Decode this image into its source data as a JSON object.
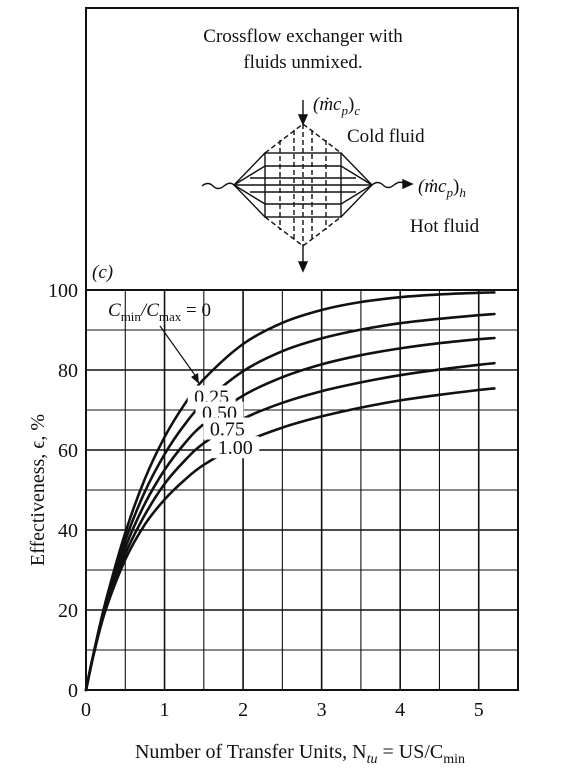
{
  "chart_data": {
    "type": "line",
    "panel_label": "(c)",
    "title_line1": "Crossflow exchanger with",
    "title_line2": "fluids unmixed.",
    "diagram": {
      "cold_stream": {
        "symbol": "(ṁc",
        "sub": "p",
        "close": ")",
        "sub2": "c",
        "label": "Cold fluid"
      },
      "hot_stream": {
        "symbol": "(ṁc",
        "sub": "p",
        "close": ")",
        "sub2": "h",
        "label": "Hot fluid"
      }
    },
    "xlabel": "Number of Transfer Units, N",
    "xlabel_sub": "tu",
    "xlabel_rest": " = US/C",
    "xlabel_sub2": "min",
    "ylabel": "Effectiveness, ϵ, %",
    "xlim": [
      0,
      5.5
    ],
    "ylim": [
      0,
      100
    ],
    "x_ticks": [
      0,
      1,
      2,
      3,
      4,
      5
    ],
    "y_ticks": [
      0,
      20,
      40,
      60,
      80,
      100
    ],
    "grid": true,
    "series_label_prefix": {
      "c": "C",
      "sub1": "min",
      "slash": "/C",
      "sub2": "max",
      "eq": " = 0"
    },
    "series": [
      {
        "name": "0",
        "x": [
          0,
          0.1,
          0.25,
          0.5,
          0.75,
          1.0,
          1.25,
          1.5,
          2.0,
          2.5,
          3.0,
          3.5,
          4.0,
          4.5,
          5.0,
          5.2
        ],
        "values": [
          0,
          9.5,
          22.1,
          39.3,
          52.8,
          63.2,
          71.3,
          77.7,
          86.5,
          91.8,
          95.0,
          97.0,
          98.2,
          98.9,
          99.3,
          99.4
        ]
      },
      {
        "name": "0.25",
        "x": [
          0,
          0.1,
          0.25,
          0.5,
          0.75,
          1.0,
          1.25,
          1.5,
          2.0,
          2.5,
          3.0,
          3.5,
          4.0,
          4.5,
          5.0,
          5.2
        ],
        "values": [
          0,
          9.4,
          21.6,
          37.4,
          49.6,
          58.9,
          66.2,
          71.8,
          79.7,
          84.7,
          87.9,
          90.1,
          91.7,
          92.8,
          93.7,
          94.0
        ]
      },
      {
        "name": "0.50",
        "x": [
          0,
          0.1,
          0.25,
          0.5,
          0.75,
          1.0,
          1.25,
          1.5,
          2.0,
          2.5,
          3.0,
          3.5,
          4.0,
          4.5,
          5.0,
          5.2
        ],
        "values": [
          0,
          9.3,
          21.0,
          35.6,
          46.6,
          55.0,
          61.5,
          66.5,
          73.6,
          78.2,
          81.4,
          83.7,
          85.4,
          86.7,
          87.7,
          88.0
        ]
      },
      {
        "name": "0.75",
        "x": [
          0,
          0.1,
          0.25,
          0.5,
          0.75,
          1.0,
          1.25,
          1.5,
          2.0,
          2.5,
          3.0,
          3.5,
          4.0,
          4.5,
          5.0,
          5.2
        ],
        "values": [
          0,
          9.2,
          20.5,
          34.0,
          43.8,
          51.5,
          57.2,
          61.7,
          67.8,
          71.8,
          74.7,
          76.9,
          78.7,
          80.1,
          81.3,
          81.7
        ]
      },
      {
        "name": "1.00",
        "x": [
          0,
          0.1,
          0.25,
          0.5,
          0.75,
          1.0,
          1.25,
          1.5,
          2.0,
          2.5,
          3.0,
          3.5,
          4.0,
          4.5,
          5.0,
          5.2
        ],
        "values": [
          0,
          9.1,
          20.0,
          32.6,
          41.4,
          47.6,
          52.4,
          56.3,
          61.8,
          65.6,
          68.4,
          70.6,
          72.4,
          73.8,
          75.0,
          75.4
        ]
      }
    ]
  }
}
